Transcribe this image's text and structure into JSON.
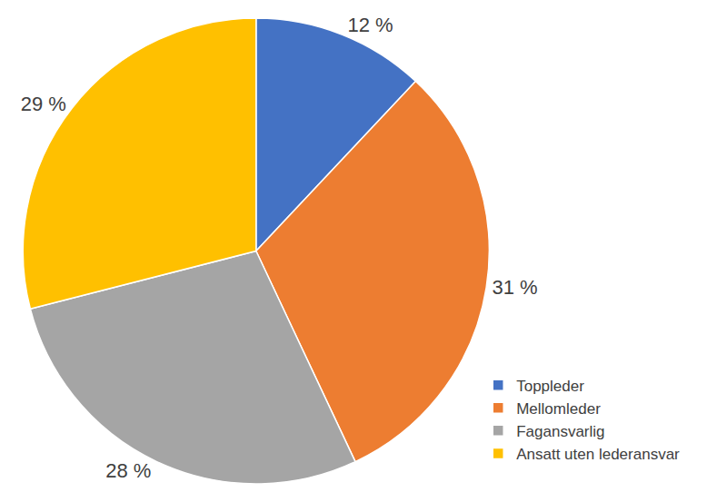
{
  "chart_data": {
    "type": "pie",
    "categories": [
      "Toppleder",
      "Mellomleder",
      "Fagansvarlig",
      "Ansatt uten lederansvar"
    ],
    "values": [
      12,
      31,
      28,
      29
    ],
    "value_labels": [
      "12 %",
      "31 %",
      "28 %",
      "29 %"
    ],
    "colors": [
      "#4472c4",
      "#ed7d31",
      "#a5a5a5",
      "#ffc000"
    ],
    "data_labels": true,
    "legend": "bottom right"
  }
}
